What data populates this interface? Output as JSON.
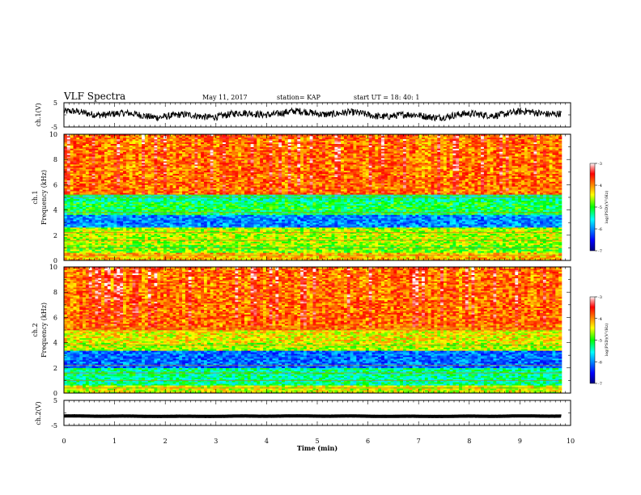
{
  "header": {
    "title": "VLF Spectra",
    "date": "May 11, 2017",
    "station": "station= KAP",
    "start": "start  UT  =    18: 40: 1"
  },
  "chart_data": {
    "type": "heatmap",
    "x": {
      "label": "Time  (min)",
      "range": [
        0,
        10
      ],
      "ticks": [
        "0",
        "1",
        "2",
        "3",
        "4",
        "5",
        "6",
        "7",
        "8",
        "9",
        "10"
      ]
    },
    "panels": [
      {
        "name": "ch1-waveform",
        "type": "line",
        "ylabel": "ch.1(V)",
        "yrange": [
          -5,
          5
        ],
        "yticks": [
          "5",
          "-5"
        ],
        "signal": {
          "mean": 0.2,
          "amplitude": 1.8
        }
      },
      {
        "name": "ch1-spectrogram",
        "type": "heatmap",
        "ylabel_line1": "ch.1",
        "ylabel_line2": "Frequency  (kHz)",
        "yrange": [
          0,
          10
        ],
        "yticks": [
          "0",
          "2",
          "4",
          "6",
          "8",
          "10"
        ],
        "colorbar": {
          "label": "log(PSD)(V²/Hz)",
          "range": [
            -7,
            -3
          ],
          "ticks": [
            "-3",
            "-4",
            "-5",
            "-6",
            "-7"
          ]
        },
        "bands_khz": [
          {
            "from": 0.0,
            "to": 0.6,
            "level": -4.2
          },
          {
            "from": 0.6,
            "to": 1.2,
            "level": -4.8
          },
          {
            "from": 1.2,
            "to": 2.6,
            "level": -4.6
          },
          {
            "from": 2.6,
            "to": 3.6,
            "level": -6.0
          },
          {
            "from": 3.6,
            "to": 4.6,
            "level": -5.1
          },
          {
            "from": 4.6,
            "to": 5.3,
            "level": -5.3
          },
          {
            "from": 5.3,
            "to": 10.0,
            "level": -3.9
          }
        ]
      },
      {
        "name": "ch2-spectrogram",
        "type": "heatmap",
        "ylabel_line1": "ch.2",
        "ylabel_line2": "Frequency  (kHz)",
        "yrange": [
          0,
          10
        ],
        "yticks": [
          "0",
          "2",
          "4",
          "6",
          "8",
          "10"
        ],
        "colorbar": {
          "label": "log(PSD)(V²/Hz)",
          "range": [
            -7,
            -3
          ],
          "ticks": [
            "-3",
            "-4",
            "-5",
            "-6",
            "-7"
          ]
        },
        "bands_khz": [
          {
            "from": 0.0,
            "to": 0.6,
            "level": -4.5
          },
          {
            "from": 0.6,
            "to": 2.0,
            "level": -5.3
          },
          {
            "from": 2.0,
            "to": 3.4,
            "level": -6.1
          },
          {
            "from": 3.4,
            "to": 4.0,
            "level": -4.6
          },
          {
            "from": 4.0,
            "to": 5.0,
            "level": -4.4
          },
          {
            "from": 5.0,
            "to": 10.0,
            "level": -3.9
          }
        ]
      },
      {
        "name": "ch2-waveform",
        "type": "line",
        "ylabel": "ch.2(V)",
        "yrange": [
          -5,
          5
        ],
        "yticks": [
          "5",
          "-5"
        ],
        "signal": {
          "mean": -1.3,
          "amplitude": 0.15
        }
      }
    ]
  }
}
